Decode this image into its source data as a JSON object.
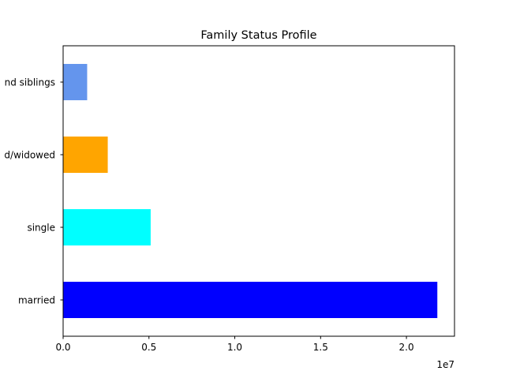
{
  "chart_data": {
    "type": "bar",
    "orientation": "horizontal",
    "title": "Family Status Profile",
    "xlabel": "",
    "ylabel": "",
    "x_offset_label": "1e7",
    "xlim": [
      0,
      2.28
    ],
    "x_ticks": [
      {
        "value": 0.0,
        "label": "0.0"
      },
      {
        "value": 0.5,
        "label": "0.5"
      },
      {
        "value": 1.0,
        "label": "1.0"
      },
      {
        "value": 1.5,
        "label": "1.5"
      },
      {
        "value": 2.0,
        "label": "2.0"
      }
    ],
    "categories": [
      "married",
      "single",
      "separated/widowed",
      "spouse and siblings"
    ],
    "visible_category_labels": [
      "married",
      "single",
      "d/widowed",
      "nd siblings"
    ],
    "values": [
      2.18,
      0.51,
      0.26,
      0.14
    ],
    "colors": [
      "#0000ff",
      "#00ffff",
      "#ffa500",
      "#6495ed"
    ],
    "grid": false,
    "legend": "none"
  }
}
